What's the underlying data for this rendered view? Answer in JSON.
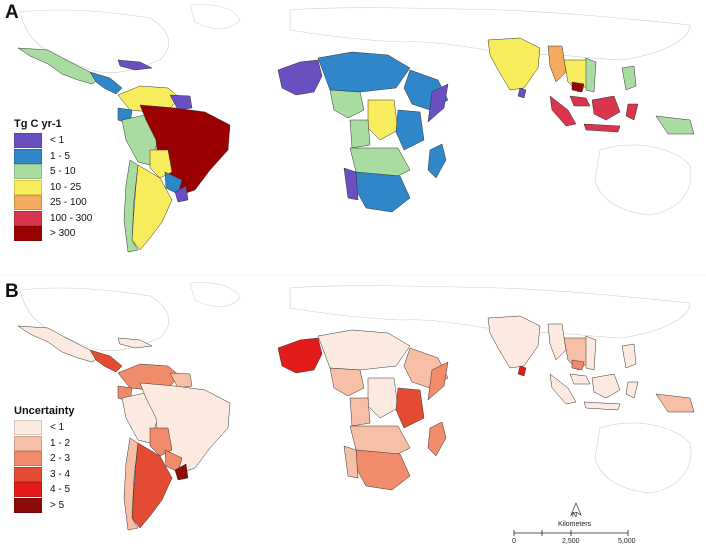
{
  "panels": [
    {
      "label": "A"
    },
    {
      "label": "B"
    }
  ],
  "legend_a": {
    "title": "Tg C yr-1",
    "items": [
      {
        "label": "< 1",
        "color": "#6a4fc0"
      },
      {
        "label": "1 - 5",
        "color": "#2f86c8"
      },
      {
        "label": "5 - 10",
        "color": "#a8dca0"
      },
      {
        "label": "10 - 25",
        "color": "#f7ed5c"
      },
      {
        "label": "25 - 100",
        "color": "#f6aa5e"
      },
      {
        "label": "100 - 300",
        "color": "#d9364e"
      },
      {
        "label": "> 300",
        "color": "#9b0000"
      }
    ]
  },
  "legend_b": {
    "title": "Uncertainty",
    "items": [
      {
        "label": "< 1",
        "color": "#fce9df"
      },
      {
        "label": "1 - 2",
        "color": "#f7bfa6"
      },
      {
        "label": "2 - 3",
        "color": "#f08c6c"
      },
      {
        "label": "3 - 4",
        "color": "#e34b33"
      },
      {
        "label": "4 - 5",
        "color": "#e31b1b"
      },
      {
        "label": "> 5",
        "color": "#8e0b0b"
      }
    ]
  },
  "north_arrow": {
    "label": "N"
  },
  "scale_bar": {
    "units": "Kilometers",
    "ticks": [
      "0",
      "2,500",
      "5,000"
    ]
  }
}
